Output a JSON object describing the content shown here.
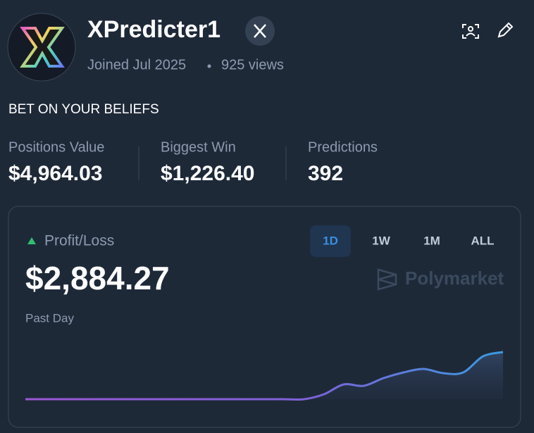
{
  "profile": {
    "name": "XPredicter1",
    "joined": "Joined Jul 2025",
    "views": "925 views",
    "bio": "BET ON YOUR BELIEFS"
  },
  "stats": [
    {
      "label": "Positions Value",
      "value": "$4,964.03"
    },
    {
      "label": "Biggest Win",
      "value": "$1,226.40"
    },
    {
      "label": "Predictions",
      "value": "392"
    }
  ],
  "pnl": {
    "label": "Profit/Loss",
    "value": "$2,884.27",
    "period": "Past Day",
    "tabs": [
      "1D",
      "1W",
      "1M",
      "ALL"
    ],
    "brand": "Polymarket"
  },
  "chart": {
    "type": "line",
    "values": [
      0,
      0,
      0,
      0,
      0,
      0,
      0,
      0,
      0,
      0,
      0,
      0,
      0,
      0,
      0,
      301,
      904,
      818,
      1292,
      1636,
      1851,
      1593,
      1636,
      2626,
      2884.27
    ]
  }
}
